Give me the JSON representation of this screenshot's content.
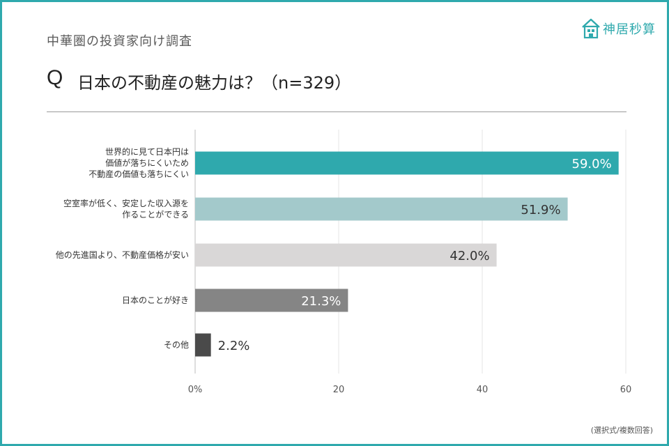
{
  "header": {
    "subtitle": "中華圏の投資家向け調査",
    "q_mark": "Q",
    "title": "日本の不動産の魅力は？（n=329）",
    "logo_text": "神居秒算",
    "footnote": "(選択式/複数回答)"
  },
  "colors": {
    "frame": "#2fa9ad",
    "bar_1": "#2fa9ad",
    "bar_2": "#a3c9cb",
    "bar_3": "#d9d7d7",
    "bar_4": "#858585",
    "bar_5": "#4a4a4a"
  },
  "chart_data": {
    "type": "bar",
    "orientation": "horizontal",
    "categories": [
      [
        "世界的に見て日本円は",
        "価値が落ちにくいため",
        "不動産の価値も落ちにくい"
      ],
      [
        "空室率が低く、安定した収入源を",
        "作ることができる"
      ],
      [
        "他の先進国より、不動産価格が安い"
      ],
      [
        "日本のことが好き"
      ],
      [
        "その他"
      ]
    ],
    "values": [
      59.0,
      51.9,
      42.0,
      21.3,
      2.2
    ],
    "value_labels": [
      "59.0%",
      "51.9%",
      "42.0%",
      "21.3%",
      "2.2%"
    ],
    "xlim": [
      0,
      60
    ],
    "xticks": [
      0,
      20,
      40,
      60
    ],
    "xtick_labels": [
      "0%",
      "20",
      "40",
      "60"
    ],
    "grid": true,
    "legend": "none"
  }
}
